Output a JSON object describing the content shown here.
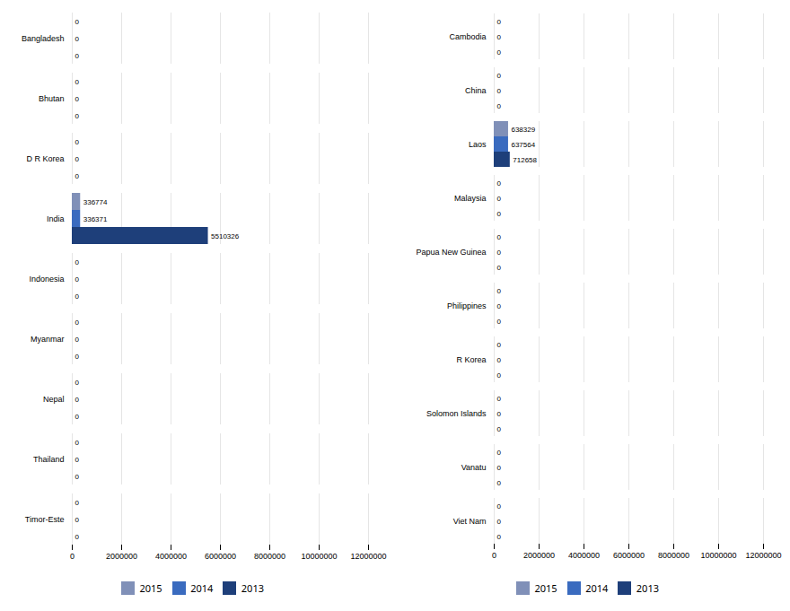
{
  "chart_data": [
    {
      "type": "bar",
      "orientation": "horizontal",
      "categories": [
        "Bangladesh",
        "Bhutan",
        "D R Korea",
        "India",
        "Indonesia",
        "Myanmar",
        "Nepal",
        "Thailand",
        "Timor-Este"
      ],
      "series": [
        {
          "name": "2015",
          "color": "#8090b8",
          "values": [
            0,
            0,
            0,
            336774,
            0,
            0,
            0,
            0,
            0
          ]
        },
        {
          "name": "2014",
          "color": "#3a6bbf",
          "values": [
            0,
            0,
            0,
            336371,
            0,
            0,
            0,
            0,
            0
          ]
        },
        {
          "name": "2013",
          "color": "#1e3f7a",
          "values": [
            0,
            0,
            0,
            5510326,
            0,
            0,
            0,
            0,
            0
          ]
        }
      ],
      "xlim": [
        0,
        12000000
      ],
      "xticks": [
        0,
        2000000,
        4000000,
        6000000,
        8000000,
        10000000,
        12000000
      ],
      "grid": true,
      "data_labels": true,
      "legend": "bottom"
    },
    {
      "type": "bar",
      "orientation": "horizontal",
      "categories": [
        "Cambodia",
        "China",
        "Laos",
        "Malaysia",
        "Papua New Guinea",
        "Philippines",
        "R Korea",
        "Solomon Islands",
        "Vanatu",
        "Viet Nam"
      ],
      "series": [
        {
          "name": "2015",
          "color": "#8090b8",
          "values": [
            0,
            0,
            638329,
            0,
            0,
            0,
            0,
            0,
            0,
            0
          ]
        },
        {
          "name": "2014",
          "color": "#3a6bbf",
          "values": [
            0,
            0,
            637564,
            0,
            0,
            0,
            0,
            0,
            0,
            0
          ]
        },
        {
          "name": "2013",
          "color": "#1e3f7a",
          "values": [
            0,
            0,
            712658,
            0,
            0,
            0,
            0,
            0,
            0,
            0
          ]
        }
      ],
      "xlim": [
        0,
        12000000
      ],
      "xticks": [
        0,
        2000000,
        4000000,
        6000000,
        8000000,
        10000000,
        12000000
      ],
      "grid": true,
      "data_labels": true,
      "legend": "bottom"
    }
  ]
}
